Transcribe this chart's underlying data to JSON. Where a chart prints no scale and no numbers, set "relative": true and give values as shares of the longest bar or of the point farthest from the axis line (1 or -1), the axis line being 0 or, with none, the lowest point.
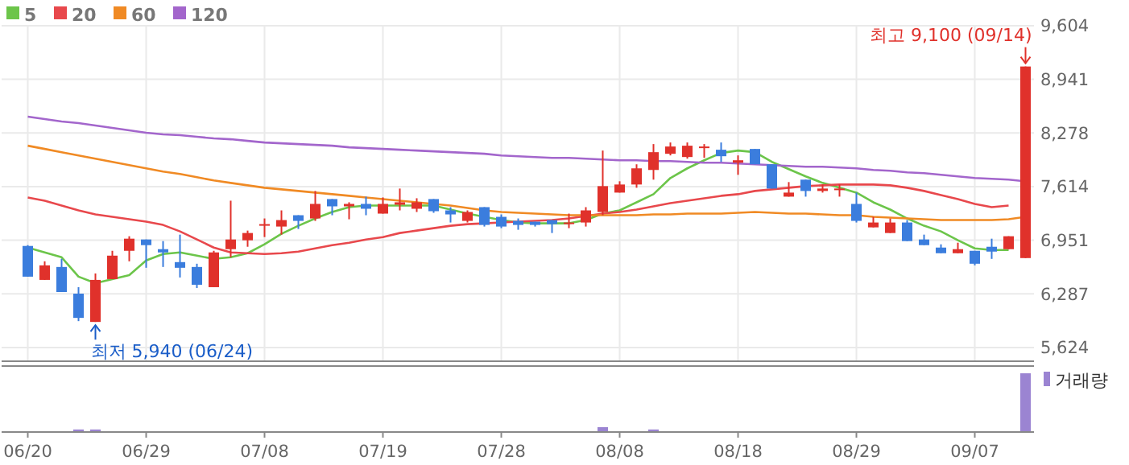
{
  "chart_data": [
    {
      "type": "candlestick",
      "categories": [
        null,
        null,
        null,
        null,
        null,
        null,
        null,
        null,
        null,
        null,
        null,
        null,
        null,
        null,
        null,
        null,
        null,
        null,
        null,
        null,
        null,
        null,
        null,
        null,
        null,
        null,
        null,
        null,
        null,
        null,
        null,
        null,
        null,
        null,
        null,
        null,
        null,
        null,
        null,
        null,
        null,
        null,
        null,
        null,
        null,
        null,
        null,
        null,
        null,
        null,
        null,
        null,
        null,
        null,
        null,
        null,
        null,
        null,
        null,
        null
      ],
      "ohlc": [
        [
          6880,
          6890,
          6500,
          6500
        ],
        [
          6460,
          6690,
          6460,
          6640
        ],
        [
          6620,
          6720,
          6310,
          6310
        ],
        [
          6290,
          6370,
          5950,
          5990
        ],
        [
          5940,
          6540,
          5940,
          6460
        ],
        [
          6470,
          6820,
          6470,
          6760
        ],
        [
          6820,
          7000,
          6690,
          6970
        ],
        [
          6960,
          6960,
          6610,
          6890
        ],
        [
          6840,
          6940,
          6620,
          6800
        ],
        [
          6680,
          7020,
          6490,
          6610
        ],
        [
          6620,
          6660,
          6360,
          6400
        ],
        [
          6370,
          6820,
          6370,
          6800
        ],
        [
          6840,
          7440,
          6740,
          6960
        ],
        [
          6950,
          7070,
          6870,
          7040
        ],
        [
          7130,
          7220,
          6990,
          7150
        ],
        [
          7120,
          7320,
          7020,
          7200
        ],
        [
          7260,
          7260,
          7090,
          7190
        ],
        [
          7220,
          7560,
          7190,
          7400
        ],
        [
          7460,
          7460,
          7260,
          7370
        ],
        [
          7370,
          7420,
          7210,
          7400
        ],
        [
          7400,
          7490,
          7260,
          7340
        ],
        [
          7280,
          7480,
          7280,
          7400
        ],
        [
          7390,
          7590,
          7320,
          7420
        ],
        [
          7340,
          7470,
          7300,
          7420
        ],
        [
          7460,
          7460,
          7290,
          7310
        ],
        [
          7320,
          7360,
          7170,
          7270
        ],
        [
          7190,
          7320,
          7170,
          7300
        ],
        [
          7360,
          7360,
          7120,
          7140
        ],
        [
          7240,
          7270,
          7100,
          7120
        ],
        [
          7190,
          7220,
          7080,
          7140
        ],
        [
          7180,
          7180,
          7120,
          7140
        ],
        [
          7200,
          7200,
          7040,
          7150
        ],
        [
          7160,
          7280,
          7100,
          7170
        ],
        [
          7170,
          7360,
          7120,
          7320
        ],
        [
          7300,
          8060,
          7260,
          7620
        ],
        [
          7540,
          7680,
          7540,
          7640
        ],
        [
          7640,
          7890,
          7600,
          7840
        ],
        [
          7820,
          8140,
          7700,
          8040
        ],
        [
          8020,
          8160,
          8000,
          8110
        ],
        [
          7980,
          8160,
          7960,
          8120
        ],
        [
          8090,
          8140,
          7970,
          8110
        ],
        [
          8070,
          8160,
          7920,
          7990
        ],
        [
          7910,
          8000,
          7760,
          7940
        ],
        [
          8080,
          8080,
          7890,
          7890
        ],
        [
          7890,
          7890,
          7590,
          7590
        ],
        [
          7490,
          7670,
          7490,
          7540
        ],
        [
          7700,
          7700,
          7490,
          7560
        ],
        [
          7560,
          7640,
          7540,
          7590
        ],
        [
          7570,
          7640,
          7490,
          7590
        ],
        [
          7400,
          7540,
          7170,
          7190
        ],
        [
          7110,
          7240,
          7110,
          7170
        ],
        [
          7040,
          7220,
          7040,
          7170
        ],
        [
          7170,
          7200,
          6940,
          6940
        ],
        [
          6960,
          7020,
          6890,
          6890
        ],
        [
          6860,
          6900,
          6790,
          6790
        ],
        [
          6790,
          6920,
          6790,
          6840
        ],
        [
          6820,
          6820,
          6640,
          6660
        ],
        [
          6870,
          6970,
          6720,
          6810
        ],
        [
          6840,
          7000,
          6840,
          7000
        ],
        [
          6730,
          9100,
          6730,
          9100
        ]
      ],
      "colors": [
        "#3b7ddd",
        "#e0312b",
        "#3b7ddd",
        "#3b7ddd",
        "#e0312b",
        "#e0312b",
        "#e0312b",
        "#3b7ddd",
        "#3b7ddd",
        "#3b7ddd",
        "#3b7ddd",
        "#e0312b",
        "#e0312b",
        "#e0312b",
        "#e0312b",
        "#e0312b",
        "#3b7ddd",
        "#e0312b",
        "#3b7ddd",
        "#e0312b",
        "#3b7ddd",
        "#e0312b",
        "#e0312b",
        "#e0312b",
        "#3b7ddd",
        "#3b7ddd",
        "#e0312b",
        "#3b7ddd",
        "#3b7ddd",
        "#3b7ddd",
        "#3b7ddd",
        "#3b7ddd",
        "#e0312b",
        "#e0312b",
        "#e0312b",
        "#e0312b",
        "#e0312b",
        "#e0312b",
        "#e0312b",
        "#e0312b",
        "#e0312b",
        "#3b7ddd",
        "#e0312b",
        "#3b7ddd",
        "#3b7ddd",
        "#e0312b",
        "#3b7ddd",
        "#e0312b",
        "#e0312b",
        "#3b7ddd",
        "#e0312b",
        "#e0312b",
        "#3b7ddd",
        "#3b7ddd",
        "#3b7ddd",
        "#e0312b",
        "#3b7ddd",
        "#3b7ddd",
        "#e0312b",
        "#e0312b"
      ],
      "series": [
        {
          "type": "line",
          "name": "5",
          "color": "#6cc54a",
          "values": [
            6860,
            6800,
            6740,
            6500,
            6420,
            6470,
            6520,
            6700,
            6780,
            6800,
            6760,
            6720,
            6740,
            6790,
            6900,
            7030,
            7130,
            7220,
            7300,
            7360,
            7380,
            7380,
            7380,
            7380,
            7380,
            7330,
            7280,
            7240,
            7200,
            7170,
            7160,
            7160,
            7160,
            7200,
            7280,
            7320,
            7420,
            7520,
            7720,
            7840,
            7940,
            8030,
            8060,
            8040,
            7920,
            7830,
            7740,
            7660,
            7600,
            7540,
            7420,
            7330,
            7220,
            7130,
            7060,
            6950,
            6850,
            6830,
            6830,
            null
          ]
        },
        {
          "type": "line",
          "name": "20",
          "color": "#e8484c",
          "values": [
            7480,
            7440,
            7380,
            7320,
            7270,
            7240,
            7210,
            7180,
            7140,
            7060,
            6960,
            6860,
            6800,
            6790,
            6780,
            6790,
            6810,
            6850,
            6890,
            6920,
            6960,
            6990,
            7040,
            7070,
            7100,
            7130,
            7150,
            7160,
            7170,
            7180,
            7190,
            7200,
            7220,
            7250,
            7280,
            7300,
            7330,
            7370,
            7410,
            7440,
            7470,
            7500,
            7520,
            7560,
            7580,
            7600,
            7620,
            7630,
            7640,
            7640,
            7640,
            7630,
            7600,
            7560,
            7510,
            7460,
            7400,
            7360,
            7380,
            null
          ]
        },
        {
          "type": "line",
          "name": "60",
          "color": "#f08a24",
          "values": [
            8120,
            8080,
            8040,
            8000,
            7960,
            7920,
            7880,
            7840,
            7800,
            7770,
            7730,
            7690,
            7660,
            7630,
            7600,
            7580,
            7560,
            7540,
            7520,
            7500,
            7480,
            7460,
            7440,
            7420,
            7400,
            7380,
            7350,
            7320,
            7300,
            7290,
            7280,
            7270,
            7260,
            7260,
            7260,
            7260,
            7260,
            7270,
            7270,
            7280,
            7280,
            7280,
            7290,
            7300,
            7290,
            7280,
            7280,
            7270,
            7260,
            7260,
            7240,
            7230,
            7220,
            7210,
            7200,
            7200,
            7200,
            7200,
            7210,
            7240
          ]
        },
        {
          "type": "line",
          "name": "120",
          "color": "#a366cc",
          "values": [
            8480,
            8450,
            8420,
            8400,
            8370,
            8340,
            8310,
            8280,
            8260,
            8250,
            8230,
            8210,
            8200,
            8180,
            8160,
            8150,
            8140,
            8130,
            8120,
            8100,
            8090,
            8080,
            8070,
            8060,
            8050,
            8040,
            8030,
            8020,
            8000,
            7990,
            7980,
            7970,
            7970,
            7960,
            7950,
            7940,
            7940,
            7930,
            7930,
            7920,
            7910,
            7910,
            7900,
            7890,
            7880,
            7870,
            7860,
            7860,
            7850,
            7840,
            7820,
            7810,
            7790,
            7780,
            7760,
            7740,
            7720,
            7710,
            7700,
            7680
          ]
        }
      ],
      "ylim": [
        5464,
        9604
      ],
      "yticks": [
        {
          "value": 5624,
          "label": "5,624"
        },
        {
          "value": 6287,
          "label": "6,287"
        },
        {
          "value": 6951,
          "label": "6,951"
        },
        {
          "value": 7614,
          "label": "7,614"
        },
        {
          "value": 8278,
          "label": "8,278"
        },
        {
          "value": 8941,
          "label": "8,941"
        },
        {
          "value": 9604,
          "label": "9,604"
        }
      ],
      "grid": true,
      "legend": "top left",
      "tick_labels": "y",
      "annotations": [
        "최저 5,940 (06/24)",
        "최고 9,100 (09/14)"
      ]
    },
    {
      "type": "bar",
      "relative": true,
      "categories": [
        "06/20",
        null,
        null,
        null,
        null,
        null,
        null,
        "06/29",
        null,
        null,
        null,
        null,
        null,
        null,
        "07/08",
        null,
        null,
        null,
        null,
        null,
        null,
        "07/19",
        null,
        null,
        null,
        null,
        null,
        null,
        "07/28",
        null,
        null,
        null,
        null,
        null,
        null,
        "08/08",
        null,
        null,
        null,
        null,
        null,
        null,
        "08/18",
        null,
        null,
        null,
        null,
        null,
        null,
        "08/29",
        null,
        null,
        null,
        null,
        null,
        null,
        "09/07",
        null,
        null,
        null
      ],
      "series": [
        {
          "name": "거래량",
          "color": "#9b84d2",
          "values": [
            null,
            null,
            null,
            0.03,
            0.03,
            null,
            null,
            null,
            null,
            null,
            null,
            null,
            null,
            null,
            null,
            null,
            null,
            null,
            null,
            null,
            null,
            null,
            null,
            null,
            null,
            null,
            null,
            null,
            null,
            null,
            null,
            null,
            null,
            null,
            0.07,
            null,
            null,
            0.03,
            null,
            null,
            null,
            null,
            null,
            null,
            null,
            null,
            null,
            null,
            null,
            null,
            null,
            null,
            null,
            null,
            null,
            null,
            null,
            null,
            null,
            1
          ]
        }
      ],
      "legend": "top right",
      "tick_labels": "x"
    }
  ]
}
